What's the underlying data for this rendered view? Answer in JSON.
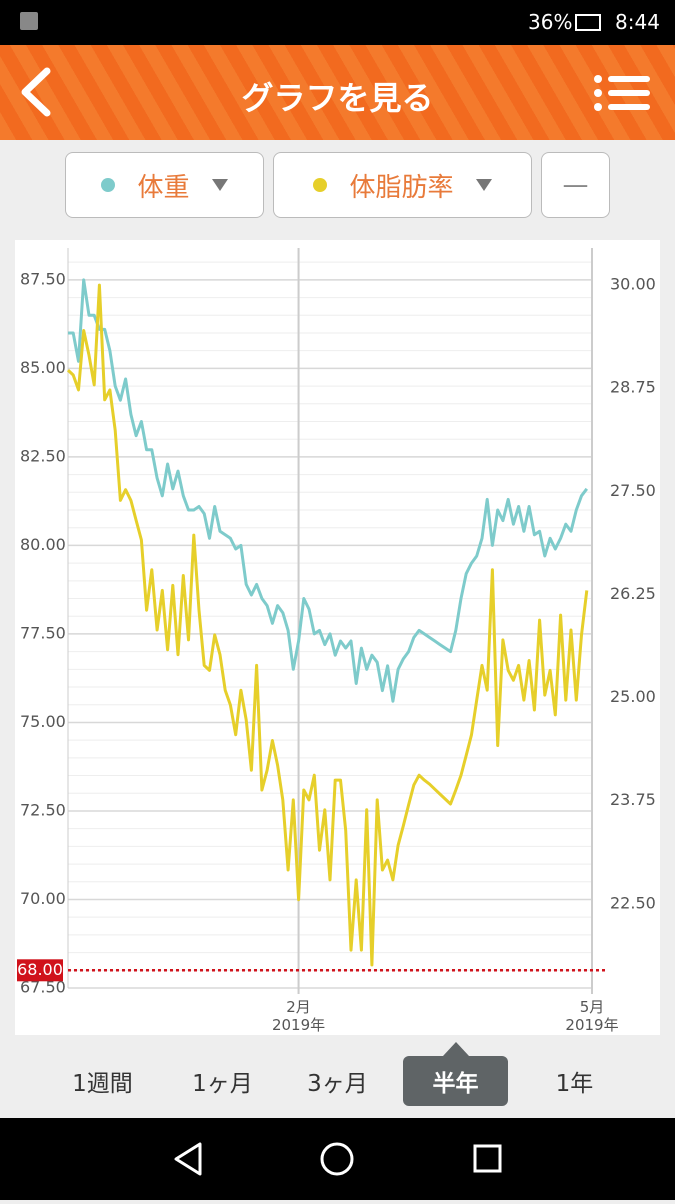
{
  "status_bar": {
    "battery": "36%",
    "time": "8:44"
  },
  "header": {
    "title": "グラフを見る"
  },
  "extra_selector": "—",
  "chart_data": {
    "type": "line",
    "categories": [
      null,
      null,
      null,
      null,
      null,
      null,
      null,
      null,
      null,
      null,
      null,
      null,
      null,
      null,
      null,
      null,
      null,
      null,
      null,
      null,
      null,
      null,
      null,
      null,
      null,
      null,
      null,
      null,
      null,
      null,
      null,
      null,
      null,
      null,
      null,
      null,
      null,
      null,
      null,
      null,
      null,
      null,
      null,
      null,
      "2月\n2019年",
      null,
      null,
      null,
      null,
      null,
      null,
      null,
      null,
      null,
      null,
      null,
      null,
      null,
      null,
      null,
      null,
      null,
      null,
      null,
      null,
      null,
      null,
      null,
      null,
      null,
      null,
      null,
      null,
      null,
      null,
      null,
      null,
      null,
      null,
      null,
      null,
      null,
      null,
      null,
      null,
      null,
      null,
      null,
      null,
      null,
      null,
      null,
      null,
      null,
      null,
      null,
      null,
      null,
      null,
      null,
      "5月\n2019年"
    ],
    "series": [
      {
        "name": "体重",
        "color": "#7ecbcb",
        "axis": "y",
        "values": [
          86.0,
          86.0,
          85.2,
          87.5,
          86.5,
          86.5,
          86.1,
          86.1,
          85.5,
          84.5,
          84.1,
          84.7,
          83.7,
          83.1,
          83.5,
          82.7,
          82.7,
          81.9,
          81.4,
          82.3,
          81.6,
          82.1,
          81.4,
          81.0,
          81.0,
          81.1,
          80.9,
          80.2,
          81.1,
          80.4,
          80.3,
          80.2,
          79.9,
          80.0,
          78.9,
          78.6,
          78.9,
          78.5,
          78.3,
          77.8,
          78.3,
          78.1,
          77.6,
          76.5,
          77.3,
          78.5,
          78.2,
          77.5,
          77.6,
          77.2,
          77.5,
          76.9,
          77.3,
          77.1,
          77.3,
          76.1,
          77.1,
          76.5,
          76.9,
          76.7,
          75.9,
          76.6,
          75.6,
          76.5,
          76.8,
          77.0,
          77.4,
          77.6,
          77.5,
          77.4,
          77.3,
          77.2,
          77.1,
          77.0,
          77.6,
          78.5,
          79.2,
          79.5,
          79.7,
          80.2,
          81.3,
          80.0,
          81.0,
          80.7,
          81.3,
          80.6,
          81.1,
          80.4,
          81.1,
          80.3,
          80.4,
          79.7,
          80.2,
          79.9,
          80.2,
          80.6,
          80.4,
          81.0,
          81.4,
          81.6,
          null
        ]
      },
      {
        "name": "体脂肪率",
        "color": "#e6cf2a",
        "axis": "y2",
        "values": [
          28.97,
          28.91,
          28.73,
          29.45,
          29.15,
          28.79,
          30.0,
          28.61,
          28.73,
          28.24,
          27.39,
          27.52,
          27.39,
          27.15,
          26.91,
          26.06,
          26.55,
          25.82,
          26.3,
          25.58,
          26.36,
          25.52,
          26.48,
          25.7,
          26.97,
          26.06,
          25.39,
          25.33,
          25.76,
          25.52,
          25.09,
          24.91,
          24.55,
          25.09,
          24.73,
          24.12,
          25.39,
          23.88,
          24.12,
          24.48,
          24.18,
          23.76,
          22.91,
          23.76,
          22.55,
          23.88,
          23.76,
          24.06,
          23.15,
          23.64,
          22.79,
          24.0,
          24.0,
          23.39,
          21.94,
          22.79,
          21.94,
          23.64,
          21.76,
          23.76,
          22.91,
          23.03,
          22.79,
          23.21,
          23.45,
          23.7,
          23.94,
          24.06,
          24.0,
          23.95,
          23.89,
          23.83,
          23.77,
          23.71,
          23.88,
          24.06,
          24.3,
          24.55,
          24.97,
          25.39,
          25.09,
          26.55,
          24.42,
          25.7,
          25.33,
          25.21,
          25.39,
          24.97,
          25.45,
          24.85,
          25.94,
          25.03,
          25.33,
          24.79,
          26.0,
          24.97,
          25.82,
          24.97,
          25.76,
          26.3,
          null
        ]
      }
    ],
    "ylim": [
      67.5,
      88.4
    ],
    "yticks": [
      {
        "value": 67.5,
        "label": "67.50"
      },
      {
        "value": 70,
        "label": "70.00"
      },
      {
        "value": 72.5,
        "label": "72.50"
      },
      {
        "value": 75,
        "label": "75.00"
      },
      {
        "value": 77.5,
        "label": "77.50"
      },
      {
        "value": 80,
        "label": "80.00"
      },
      {
        "value": 82.5,
        "label": "82.50"
      },
      {
        "value": 85,
        "label": "85.00"
      },
      {
        "value": 87.5,
        "label": "87.50"
      }
    ],
    "y2lim": [
      21.48,
      30.45
    ],
    "y2ticks": [
      {
        "value": 22.5,
        "label": "22.50"
      },
      {
        "value": 23.75,
        "label": "23.75"
      },
      {
        "value": 25,
        "label": "25.00"
      },
      {
        "value": 26.25,
        "label": "26.25"
      },
      {
        "value": 27.5,
        "label": "27.50"
      },
      {
        "value": 28.75,
        "label": "28.75"
      },
      {
        "value": 30,
        "label": "30.00"
      }
    ],
    "target": {
      "value": 68,
      "label": "68.00",
      "color": "#d0121b"
    },
    "grid": true
  },
  "periods": [
    "1週間",
    "1ヶ月",
    "3ヶ月",
    "半年",
    "1年"
  ],
  "selected_period": 3
}
